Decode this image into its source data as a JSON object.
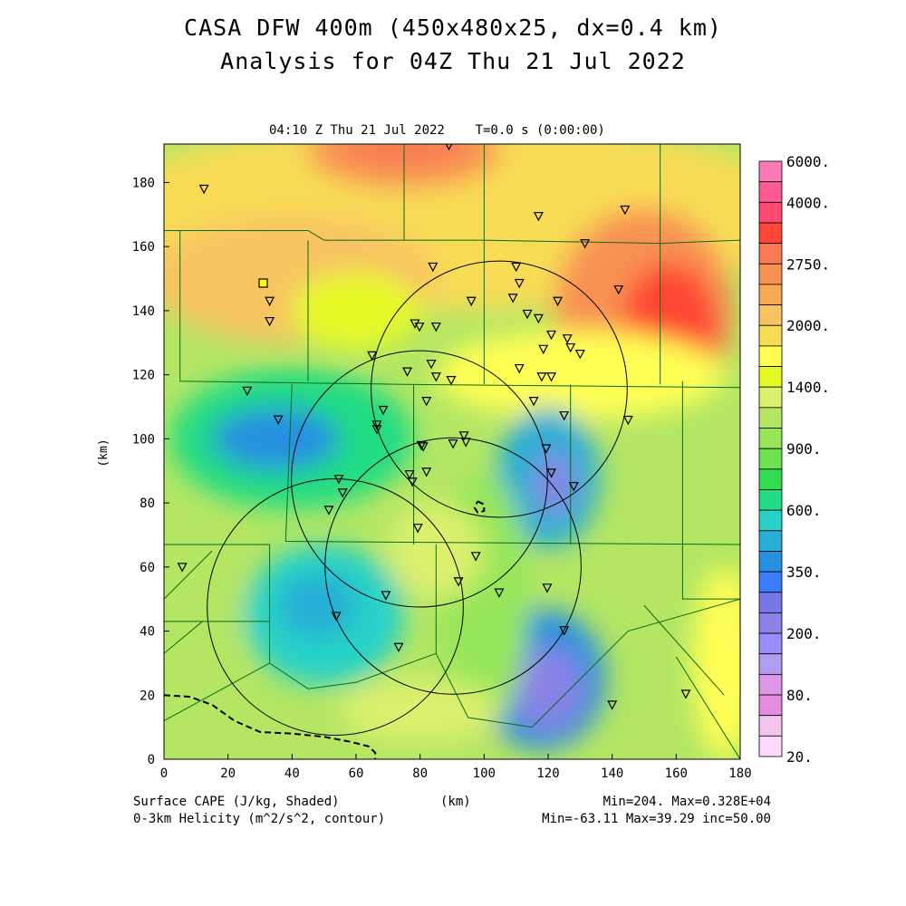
{
  "header": {
    "title_line1": "CASA DFW 400m (450x480x25, dx=0.4 km)",
    "title_line2": "Analysis for 04Z Thu 21 Jul 2022",
    "subtitle": "04:10 Z Thu 21 Jul 2022    T=0.0 s (0:00:00)"
  },
  "footer": {
    "shaded_label": "Surface CAPE (J/kg, Shaded)",
    "contour_label": "0-3km Helicity (m^2/s^2, contour)",
    "xunit": "(km)",
    "shaded_stats": "Min=204. Max=0.328E+04",
    "contour_stats": "Min=-63.11 Max=39.29 inc=50.00"
  },
  "chart_data": {
    "type": "heatmap",
    "xlabel": "(km)",
    "ylabel": "(km)",
    "xlim": [
      0,
      180
    ],
    "ylim": [
      0,
      192
    ],
    "xticks": [
      "0",
      "20",
      "40",
      "60",
      "80",
      "100",
      "120",
      "140",
      "160",
      "180"
    ],
    "yticks": [
      "0",
      "20",
      "40",
      "60",
      "80",
      "100",
      "120",
      "140",
      "160",
      "180"
    ],
    "colorbar": {
      "labels": [
        "6000.",
        "4000.",
        "2750.",
        "2000.",
        "1400.",
        "900.",
        "600.",
        "350.",
        "200.",
        "80.",
        "20."
      ],
      "label_values": [
        6000,
        4000,
        2750,
        2000,
        1400,
        900,
        600,
        350,
        200,
        80,
        20
      ],
      "colors": [
        "#ff7ab8",
        "#ff5a96",
        "#ff4a70",
        "#ff4636",
        "#f87a52",
        "#f89252",
        "#f8aa52",
        "#f8c462",
        "#f8dc56",
        "#ffff55",
        "#e6fa28",
        "#dcf06e",
        "#b4e664",
        "#96e65a",
        "#6ee150",
        "#32dc50",
        "#20dc82",
        "#28d2c8",
        "#28aed6",
        "#2890e0",
        "#3c7cff",
        "#7878e6",
        "#8a82e6",
        "#9a8cff",
        "#b09cf0",
        "#dc98e6",
        "#e68ce0",
        "#f2c4f0",
        "#ffd8ff"
      ]
    },
    "cape_min": 204,
    "cape_max": 3280,
    "helicity_min": -63.11,
    "helicity_max": 39.29,
    "helicity_inc": 50.0,
    "cape_field_blobs": [
      {
        "x": 90,
        "y": 170,
        "rx": 110,
        "ry": 30,
        "v": 1900
      },
      {
        "x": 40,
        "y": 150,
        "rx": 45,
        "ry": 20,
        "v": 2000
      },
      {
        "x": 75,
        "y": 190,
        "rx": 30,
        "ry": 12,
        "v": 2500
      },
      {
        "x": 75,
        "y": 192,
        "rx": 18,
        "ry": 6,
        "v": 3100
      },
      {
        "x": 150,
        "y": 140,
        "rx": 28,
        "ry": 32,
        "v": 2700
      },
      {
        "x": 158,
        "y": 135,
        "rx": 15,
        "ry": 20,
        "v": 3200
      },
      {
        "x": 130,
        "y": 120,
        "rx": 45,
        "ry": 14,
        "v": 1700
      },
      {
        "x": 60,
        "y": 140,
        "rx": 20,
        "ry": 12,
        "v": 1400
      },
      {
        "x": 40,
        "y": 100,
        "rx": 38,
        "ry": 22,
        "v": 600
      },
      {
        "x": 35,
        "y": 100,
        "rx": 20,
        "ry": 10,
        "v": 380
      },
      {
        "x": 50,
        "y": 45,
        "rx": 25,
        "ry": 22,
        "v": 550
      },
      {
        "x": 48,
        "y": 48,
        "rx": 12,
        "ry": 10,
        "v": 450
      },
      {
        "x": 120,
        "y": 88,
        "rx": 16,
        "ry": 22,
        "v": 450
      },
      {
        "x": 122,
        "y": 86,
        "rx": 6,
        "ry": 10,
        "v": 220
      },
      {
        "x": 118,
        "y": 25,
        "rx": 20,
        "ry": 22,
        "v": 400
      },
      {
        "x": 120,
        "y": 22,
        "rx": 11,
        "ry": 13,
        "v": 220
      },
      {
        "x": 100,
        "y": 50,
        "rx": 14,
        "ry": 40,
        "v": 950
      },
      {
        "x": 85,
        "y": 65,
        "rx": 15,
        "ry": 15,
        "v": 1300
      },
      {
        "x": 175,
        "y": 30,
        "rx": 10,
        "ry": 30,
        "v": 1600
      },
      {
        "x": 12,
        "y": 45,
        "rx": 12,
        "ry": 25,
        "v": 1100
      },
      {
        "x": 80,
        "y": 15,
        "rx": 25,
        "ry": 10,
        "v": 1250
      }
    ],
    "radar_rings_km": [
      {
        "x": 104.7,
        "y": 115.5,
        "r": 40
      },
      {
        "x": 79.8,
        "y": 87.5,
        "r": 40
      },
      {
        "x": 90.3,
        "y": 60.3,
        "r": 40
      },
      {
        "x": 53.5,
        "y": 47.5,
        "r": 40
      }
    ],
    "helicity_contours": [
      {
        "dashed": true,
        "points": [
          [
            0,
            20
          ],
          [
            8,
            19.5
          ],
          [
            15,
            17
          ],
          [
            22,
            12
          ],
          [
            30,
            8.5
          ],
          [
            40,
            8
          ],
          [
            50,
            7
          ],
          [
            58,
            5.5
          ],
          [
            64,
            4
          ],
          [
            66,
            2
          ],
          [
            66,
            0
          ]
        ]
      },
      {
        "dashed": true,
        "closed": true,
        "points": [
          [
            98,
            80.5
          ],
          [
            100,
            79.5
          ],
          [
            100,
            77.5
          ],
          [
            98,
            77
          ],
          [
            97,
            78.5
          ],
          [
            98,
            80.5
          ]
        ]
      }
    ],
    "stations_km": [
      [
        12.5,
        178
      ],
      [
        89,
        191.6
      ],
      [
        117,
        169.5
      ],
      [
        144,
        171.5
      ],
      [
        131.5,
        161
      ],
      [
        84,
        153.7
      ],
      [
        110,
        153.7
      ],
      [
        111,
        148.6
      ],
      [
        142,
        146.6
      ],
      [
        33,
        143
      ],
      [
        96,
        143
      ],
      [
        109,
        144
      ],
      [
        123,
        143
      ],
      [
        113.5,
        139
      ],
      [
        117,
        137.6
      ],
      [
        33,
        136.7
      ],
      [
        78.4,
        136
      ],
      [
        79.8,
        135
      ],
      [
        85,
        135
      ],
      [
        121,
        132.5
      ],
      [
        126,
        131.3
      ],
      [
        118.5,
        128
      ],
      [
        127,
        128.5
      ],
      [
        130,
        126.5
      ],
      [
        65,
        126
      ],
      [
        83.5,
        123.4
      ],
      [
        76,
        121
      ],
      [
        111,
        122
      ],
      [
        85,
        119.4
      ],
      [
        89.7,
        118.3
      ],
      [
        118,
        119.4
      ],
      [
        121,
        119.4
      ],
      [
        26,
        115
      ],
      [
        82,
        111.8
      ],
      [
        115.5,
        111.8
      ],
      [
        68.5,
        109
      ],
      [
        35.7,
        106
      ],
      [
        125,
        107.3
      ],
      [
        145,
        105.9
      ],
      [
        66.5,
        104.4
      ],
      [
        66.5,
        103
      ],
      [
        93.7,
        101
      ],
      [
        94.3,
        99
      ],
      [
        90.3,
        98.5
      ],
      [
        80.4,
        98
      ],
      [
        81,
        97.6
      ],
      [
        119.4,
        97
      ],
      [
        121,
        89.4
      ],
      [
        82,
        89.7
      ],
      [
        54.6,
        87.5
      ],
      [
        76.7,
        88.9
      ],
      [
        77.6,
        86.6
      ],
      [
        55.8,
        83.2
      ],
      [
        128,
        85.2
      ],
      [
        51.5,
        77.8
      ],
      [
        79.3,
        72.2
      ],
      [
        97.4,
        63.4
      ],
      [
        5.7,
        60
      ],
      [
        92,
        55.5
      ],
      [
        119.7,
        53.5
      ],
      [
        104.7,
        52
      ],
      [
        69.3,
        51.2
      ],
      [
        53.8,
        44.7
      ],
      [
        125,
        40.2
      ],
      [
        73.3,
        35
      ],
      [
        140,
        17
      ],
      [
        163,
        20.4
      ]
    ],
    "square_marker_km": [
      31,
      148.6
    ]
  }
}
